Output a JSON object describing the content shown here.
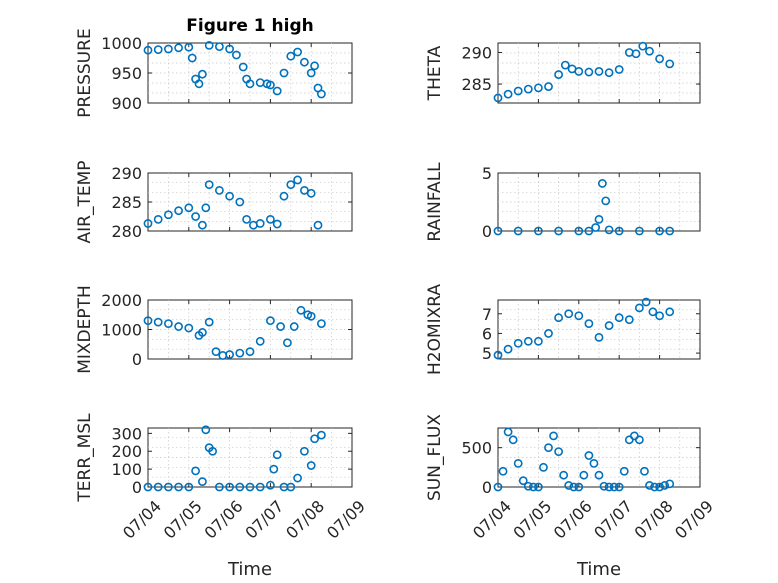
{
  "figure": {
    "title": "Figure 1 high",
    "marker_color": "#0072BD"
  },
  "chart_data": [
    {
      "type": "scatter",
      "title": "Figure 1 high",
      "ylabel": "PRESSURE",
      "xlabel": "",
      "xlim": [
        "07/04",
        "07/09"
      ],
      "ylim": [
        900,
        1000
      ],
      "yticks": [
        "900",
        "950",
        "1000"
      ],
      "xticks": [],
      "grid": true,
      "x": [
        "07/04",
        "07/04 06:00",
        "07/04 12:00",
        "07/04 18:00",
        "07/05",
        "07/05 02:00",
        "07/05 04:00",
        "07/05 06:00",
        "07/05 08:00",
        "07/05 12:00",
        "07/05 18:00",
        "07/06",
        "07/06 04:00",
        "07/06 08:00",
        "07/06 10:00",
        "07/06 12:00",
        "07/06 18:00",
        "07/06 22:00",
        "07/07",
        "07/07 04:00",
        "07/07 08:00",
        "07/07 12:00",
        "07/07 16:00",
        "07/07 20:00",
        "07/08",
        "07/08 02:00",
        "07/08 04:00",
        "07/08 06:00"
      ],
      "y": [
        988,
        989,
        990,
        992,
        993,
        975,
        940,
        932,
        948,
        996,
        994,
        990,
        980,
        960,
        940,
        932,
        934,
        932,
        930,
        920,
        950,
        978,
        985,
        968,
        950,
        962,
        925,
        915
      ]
    },
    {
      "type": "scatter",
      "ylabel": "THETA",
      "xlabel": "",
      "xlim": [
        "07/04",
        "07/09"
      ],
      "ylim": [
        282,
        291.5
      ],
      "yticks": [
        "285",
        "290"
      ],
      "xticks": [],
      "grid": true,
      "x": [
        "07/04",
        "07/04 06:00",
        "07/04 12:00",
        "07/04 18:00",
        "07/05",
        "07/05 06:00",
        "07/05 12:00",
        "07/05 16:00",
        "07/05 20:00",
        "07/06",
        "07/06 06:00",
        "07/06 12:00",
        "07/06 18:00",
        "07/07",
        "07/07 06:00",
        "07/07 10:00",
        "07/07 14:00",
        "07/07 18:00",
        "07/08",
        "07/08 06:00"
      ],
      "y": [
        282.8,
        283.4,
        283.9,
        284.2,
        284.4,
        284.6,
        286.5,
        288.0,
        287.4,
        287.0,
        286.9,
        287.0,
        286.8,
        287.3,
        290.0,
        289.8,
        291.0,
        290.2,
        289.0,
        288.2
      ]
    },
    {
      "type": "scatter",
      "ylabel": "AIR_TEMP",
      "xlabel": "",
      "xlim": [
        "07/04",
        "07/09"
      ],
      "ylim": [
        280,
        290
      ],
      "yticks": [
        "280",
        "285",
        "290"
      ],
      "xticks": [],
      "grid": true,
      "x": [
        "07/04",
        "07/04 06:00",
        "07/04 12:00",
        "07/04 18:00",
        "07/05",
        "07/05 04:00",
        "07/05 08:00",
        "07/05 10:00",
        "07/05 12:00",
        "07/05 18:00",
        "07/06",
        "07/06 06:00",
        "07/06 10:00",
        "07/06 14:00",
        "07/06 18:00",
        "07/07",
        "07/07 04:00",
        "07/07 08:00",
        "07/07 12:00",
        "07/07 16:00",
        "07/07 20:00",
        "07/08",
        "07/08 04:00"
      ],
      "y": [
        281.3,
        282.0,
        282.8,
        283.5,
        284.0,
        282.5,
        281.0,
        284.0,
        288.0,
        287.0,
        286.0,
        285.0,
        282.0,
        281.0,
        281.3,
        282.0,
        281.2,
        286.0,
        288.0,
        288.8,
        287.0,
        286.5,
        281.0
      ]
    },
    {
      "type": "scatter",
      "ylabel": "RAINFALL",
      "xlabel": "",
      "xlim": [
        "07/04",
        "07/09"
      ],
      "ylim": [
        0,
        5
      ],
      "yticks": [
        "0",
        "5"
      ],
      "xticks": [],
      "grid": true,
      "x": [
        "07/04",
        "07/04 12:00",
        "07/05",
        "07/05 12:00",
        "07/06",
        "07/06 06:00",
        "07/06 10:00",
        "07/06 12:00",
        "07/06 14:00",
        "07/06 16:00",
        "07/06 18:00",
        "07/07",
        "07/07 12:00",
        "07/08",
        "07/08 06:00"
      ],
      "y": [
        0,
        0,
        0,
        0,
        0,
        0,
        0.3,
        1.0,
        4.1,
        2.6,
        0.1,
        0,
        0,
        0,
        0
      ]
    },
    {
      "type": "scatter",
      "ylabel": "MIXDEPTH",
      "xlabel": "",
      "xlim": [
        "07/04",
        "07/09"
      ],
      "ylim": [
        0,
        2000
      ],
      "yticks": [
        "0",
        "1000",
        "2000"
      ],
      "xticks": [],
      "grid": true,
      "x": [
        "07/04",
        "07/04 06:00",
        "07/04 12:00",
        "07/04 18:00",
        "07/05",
        "07/05 06:00",
        "07/05 08:00",
        "07/05 12:00",
        "07/05 16:00",
        "07/05 20:00",
        "07/06",
        "07/06 06:00",
        "07/06 12:00",
        "07/06 18:00",
        "07/07",
        "07/07 06:00",
        "07/07 10:00",
        "07/07 14:00",
        "07/07 18:00",
        "07/07 22:00",
        "07/08",
        "07/08 06:00"
      ],
      "y": [
        1300,
        1250,
        1200,
        1100,
        1050,
        800,
        900,
        1250,
        250,
        120,
        150,
        200,
        250,
        600,
        1300,
        1100,
        550,
        1100,
        1650,
        1500,
        1450,
        1200
      ]
    },
    {
      "type": "scatter",
      "ylabel": "H2OMIXRA",
      "xlabel": "",
      "xlim": [
        "07/04",
        "07/09"
      ],
      "ylim": [
        4.7,
        7.7
      ],
      "yticks": [
        "5",
        "6",
        "7"
      ],
      "xticks": [],
      "grid": true,
      "x": [
        "07/04",
        "07/04 06:00",
        "07/04 12:00",
        "07/04 18:00",
        "07/05",
        "07/05 06:00",
        "07/05 12:00",
        "07/05 18:00",
        "07/06",
        "07/06 06:00",
        "07/06 12:00",
        "07/06 18:00",
        "07/07",
        "07/07 06:00",
        "07/07 12:00",
        "07/07 16:00",
        "07/07 20:00",
        "07/08",
        "07/08 06:00"
      ],
      "y": [
        4.9,
        5.2,
        5.5,
        5.6,
        5.6,
        6.0,
        6.8,
        7.0,
        6.9,
        6.5,
        5.8,
        6.4,
        6.8,
        6.7,
        7.3,
        7.6,
        7.1,
        6.9,
        7.1
      ]
    },
    {
      "type": "scatter",
      "ylabel": "TERR_MSL",
      "xlabel": "Time",
      "xlim": [
        "07/04",
        "07/09"
      ],
      "ylim": [
        0,
        330
      ],
      "yticks": [
        "0",
        "100",
        "200",
        "300"
      ],
      "xticks": [
        "07/04",
        "07/05",
        "07/06",
        "07/07",
        "07/08",
        "07/09"
      ],
      "grid": true,
      "x": [
        "07/04",
        "07/04 06:00",
        "07/04 12:00",
        "07/04 18:00",
        "07/05",
        "07/05 04:00",
        "07/05 08:00",
        "07/05 10:00",
        "07/05 12:00",
        "07/05 14:00",
        "07/05 18:00",
        "07/06",
        "07/06 06:00",
        "07/06 12:00",
        "07/06 18:00",
        "07/07",
        "07/07 02:00",
        "07/07 04:00",
        "07/07 08:00",
        "07/07 12:00",
        "07/07 16:00",
        "07/07 20:00",
        "07/08",
        "07/08 02:00",
        "07/08 06:00"
      ],
      "y": [
        0,
        0,
        0,
        0,
        0,
        90,
        30,
        320,
        220,
        200,
        0,
        0,
        0,
        0,
        0,
        10,
        100,
        180,
        0,
        0,
        50,
        200,
        120,
        270,
        290
      ]
    },
    {
      "type": "scatter",
      "ylabel": "SUN_FLUX",
      "xlabel": "Time",
      "xlim": [
        "07/04",
        "07/09"
      ],
      "ylim": [
        0,
        750
      ],
      "yticks": [
        "0",
        "500"
      ],
      "xticks": [
        "07/04",
        "07/05",
        "07/06",
        "07/07",
        "07/08",
        "07/09"
      ],
      "grid": true,
      "x": [
        "07/04",
        "07/04 03:00",
        "07/04 06:00",
        "07/04 09:00",
        "07/04 12:00",
        "07/04 15:00",
        "07/04 18:00",
        "07/04 21:00",
        "07/05",
        "07/05 03:00",
        "07/05 06:00",
        "07/05 09:00",
        "07/05 12:00",
        "07/05 15:00",
        "07/05 18:00",
        "07/05 21:00",
        "07/06",
        "07/06 03:00",
        "07/06 06:00",
        "07/06 09:00",
        "07/06 12:00",
        "07/06 15:00",
        "07/06 18:00",
        "07/06 21:00",
        "07/07",
        "07/07 03:00",
        "07/07 06:00",
        "07/07 09:00",
        "07/07 12:00",
        "07/07 15:00",
        "07/07 18:00",
        "07/07 21:00",
        "07/08",
        "07/08 03:00",
        "07/08 06:00"
      ],
      "y": [
        0,
        200,
        700,
        600,
        300,
        80,
        10,
        0,
        0,
        250,
        500,
        650,
        450,
        150,
        20,
        0,
        0,
        150,
        400,
        300,
        150,
        10,
        0,
        0,
        0,
        200,
        600,
        650,
        600,
        200,
        20,
        0,
        0,
        20,
        40
      ]
    }
  ]
}
